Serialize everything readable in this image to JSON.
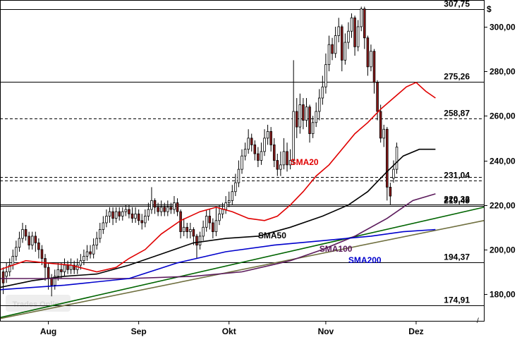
{
  "chart_data": {
    "type": "candlestick",
    "currency_symbol": "$",
    "y_range": [
      168,
      312
    ],
    "y_ticks": [
      180,
      200,
      220,
      240,
      260,
      280,
      300
    ],
    "y_tick_labels": [
      "180,00",
      "200,00",
      "220,00",
      "240,00",
      "260,00",
      "280,00",
      "300,00"
    ],
    "x_labels": [
      "Aug",
      "Sep",
      "Okt",
      "Nov",
      "Dez"
    ],
    "x_label_days": [
      15,
      43,
      71,
      101,
      129
    ],
    "days_total": 150,
    "levels": [
      {
        "value": 307.75,
        "label": "307,75",
        "style": "solid"
      },
      {
        "value": 275.26,
        "label": "275,26",
        "style": "solid"
      },
      {
        "value": 258.87,
        "label": "258,87",
        "style": "dashed"
      },
      {
        "value": 232.5,
        "label": "",
        "style": "dashed"
      },
      {
        "value": 231.04,
        "label": "231,04",
        "style": "dashed"
      },
      {
        "value": 220.32,
        "label": "220,32",
        "style": "solid"
      },
      {
        "value": 219.49,
        "label": "219,49",
        "style": "solid"
      },
      {
        "value": 194.37,
        "label": "194,37",
        "style": "solid"
      },
      {
        "value": 174.91,
        "label": "174,91",
        "style": "solid"
      }
    ],
    "sma_labels": [
      {
        "name": "SMA20",
        "color": "#e00000"
      },
      {
        "name": "SMA50",
        "color": "#000000"
      },
      {
        "name": "SMA100",
        "color": "#5b1a5b"
      },
      {
        "name": "SMA200",
        "color": "#0000cc"
      }
    ],
    "series": [
      {
        "name": "SMA20",
        "color": "#e00000",
        "points": [
          [
            0,
            191
          ],
          [
            8,
            195
          ],
          [
            14,
            194
          ],
          [
            22,
            193
          ],
          [
            30,
            190
          ],
          [
            36,
            192
          ],
          [
            40,
            196
          ],
          [
            45,
            200
          ],
          [
            50,
            207
          ],
          [
            56,
            213
          ],
          [
            62,
            217
          ],
          [
            67,
            219
          ],
          [
            72,
            217
          ],
          [
            77,
            214
          ],
          [
            82,
            213
          ],
          [
            86,
            215
          ],
          [
            90,
            220
          ],
          [
            94,
            226
          ],
          [
            98,
            233
          ],
          [
            102,
            238
          ],
          [
            106,
            245
          ],
          [
            110,
            252
          ],
          [
            114,
            257
          ],
          [
            118,
            263
          ],
          [
            122,
            268
          ],
          [
            126,
            273
          ],
          [
            129,
            275
          ],
          [
            132,
            271
          ],
          [
            135,
            268
          ]
        ]
      },
      {
        "name": "SMA50",
        "color": "#000000",
        "points": [
          [
            0,
            183
          ],
          [
            10,
            186
          ],
          [
            20,
            188
          ],
          [
            30,
            189
          ],
          [
            40,
            193
          ],
          [
            50,
            198
          ],
          [
            60,
            203
          ],
          [
            70,
            205
          ],
          [
            80,
            206
          ],
          [
            90,
            210
          ],
          [
            100,
            215
          ],
          [
            108,
            220
          ],
          [
            114,
            226
          ],
          [
            120,
            235
          ],
          [
            125,
            242
          ],
          [
            130,
            245
          ],
          [
            135,
            245
          ]
        ]
      },
      {
        "name": "SMA100",
        "color": "#5b1a5b",
        "points": [
          [
            0,
            187
          ],
          [
            20,
            187
          ],
          [
            40,
            187
          ],
          [
            60,
            188
          ],
          [
            75,
            190
          ],
          [
            90,
            195
          ],
          [
            100,
            200
          ],
          [
            110,
            206
          ],
          [
            120,
            214
          ],
          [
            128,
            222
          ],
          [
            135,
            225
          ]
        ]
      },
      {
        "name": "SMA200",
        "color": "#0000cc",
        "points": [
          [
            0,
            182
          ],
          [
            20,
            184
          ],
          [
            40,
            187
          ],
          [
            55,
            194
          ],
          [
            70,
            199
          ],
          [
            85,
            202
          ],
          [
            100,
            204
          ],
          [
            115,
            206
          ],
          [
            125,
            208
          ],
          [
            135,
            209
          ]
        ]
      },
      {
        "name": "trend-green",
        "color": "#006400",
        "points": [
          [
            0,
            169.5
          ],
          [
            150,
            219
          ]
        ]
      },
      {
        "name": "trend-olive",
        "color": "#707040",
        "points": [
          [
            0,
            169
          ],
          [
            150,
            213
          ]
        ]
      }
    ],
    "candles": [
      [
        1,
        190,
        185,
        192,
        180
      ],
      [
        2,
        188,
        190,
        194,
        185
      ],
      [
        3,
        190,
        193,
        196,
        188
      ],
      [
        4,
        193,
        197,
        200,
        191
      ],
      [
        5,
        197,
        201,
        204,
        195
      ],
      [
        6,
        201,
        205,
        208,
        199
      ],
      [
        7,
        205,
        209,
        212,
        203
      ],
      [
        8,
        209,
        206,
        211,
        204
      ],
      [
        9,
        206,
        202,
        208,
        200
      ],
      [
        10,
        202,
        206,
        208,
        200
      ],
      [
        11,
        206,
        203,
        208,
        199
      ],
      [
        12,
        203,
        200,
        205,
        196
      ],
      [
        13,
        200,
        196,
        202,
        193
      ],
      [
        14,
        196,
        192,
        198,
        186
      ],
      [
        15,
        192,
        187,
        194,
        182
      ],
      [
        16,
        187,
        184,
        189,
        179
      ],
      [
        17,
        184,
        188,
        191,
        182
      ],
      [
        18,
        188,
        191,
        194,
        186
      ],
      [
        19,
        191,
        190,
        194,
        187
      ],
      [
        20,
        190,
        193,
        196,
        188
      ],
      [
        21,
        193,
        191,
        195,
        189
      ],
      [
        22,
        191,
        193,
        196,
        189
      ],
      [
        23,
        193,
        191,
        195,
        189
      ],
      [
        24,
        191,
        193,
        196,
        189
      ],
      [
        25,
        193,
        195,
        198,
        191
      ],
      [
        26,
        195,
        197,
        200,
        193
      ],
      [
        27,
        197,
        199,
        202,
        195
      ],
      [
        28,
        199,
        198,
        202,
        196
      ],
      [
        29,
        198,
        202,
        205,
        196
      ],
      [
        30,
        202,
        205,
        208,
        200
      ],
      [
        31,
        205,
        209,
        212,
        203
      ],
      [
        32,
        209,
        212,
        215,
        207
      ],
      [
        33,
        212,
        215,
        218,
        210
      ],
      [
        34,
        215,
        217,
        219,
        212
      ],
      [
        35,
        217,
        214,
        219,
        211
      ],
      [
        36,
        214,
        217,
        219,
        212
      ],
      [
        37,
        217,
        215,
        219,
        213
      ],
      [
        38,
        215,
        217,
        219,
        213
      ],
      [
        39,
        217,
        218,
        220,
        215
      ],
      [
        40,
        218,
        216,
        220,
        214
      ],
      [
        41,
        216,
        214,
        219,
        212
      ],
      [
        42,
        214,
        216,
        219,
        212
      ],
      [
        43,
        216,
        213,
        218,
        211
      ],
      [
        44,
        213,
        212,
        216,
        209
      ],
      [
        45,
        212,
        215,
        218,
        210
      ],
      [
        46,
        215,
        218,
        221,
        213
      ],
      [
        47,
        218,
        222,
        228,
        216
      ],
      [
        48,
        222,
        219,
        223,
        216
      ],
      [
        49,
        219,
        217,
        221,
        215
      ],
      [
        50,
        217,
        219,
        222,
        215
      ],
      [
        51,
        219,
        217,
        221,
        215
      ],
      [
        52,
        217,
        219,
        222,
        215
      ],
      [
        53,
        219,
        218,
        221,
        216
      ],
      [
        54,
        218,
        221,
        224,
        216
      ],
      [
        55,
        221,
        217,
        223,
        215
      ],
      [
        56,
        217,
        208,
        218,
        205
      ],
      [
        57,
        208,
        210,
        214,
        206
      ],
      [
        58,
        210,
        208,
        212,
        205
      ],
      [
        59,
        208,
        209,
        212,
        205
      ],
      [
        60,
        209,
        206,
        210,
        202
      ],
      [
        61,
        206,
        202,
        207,
        196
      ],
      [
        62,
        202,
        206,
        208,
        200
      ],
      [
        63,
        206,
        210,
        213,
        204
      ],
      [
        64,
        210,
        215,
        218,
        208
      ],
      [
        65,
        215,
        212,
        218,
        209
      ],
      [
        66,
        212,
        208,
        214,
        205
      ],
      [
        67,
        208,
        213,
        219,
        206
      ],
      [
        68,
        213,
        216,
        220,
        211
      ],
      [
        69,
        216,
        218,
        221,
        214
      ],
      [
        70,
        218,
        221,
        224,
        216
      ],
      [
        71,
        221,
        222,
        226,
        219
      ],
      [
        72,
        222,
        226,
        229,
        220
      ],
      [
        73,
        226,
        230,
        234,
        224
      ],
      [
        74,
        230,
        236,
        240,
        228
      ],
      [
        75,
        236,
        242,
        245,
        234
      ],
      [
        76,
        242,
        245,
        248,
        240
      ],
      [
        77,
        245,
        250,
        254,
        243
      ],
      [
        78,
        250,
        247,
        252,
        244
      ],
      [
        79,
        247,
        243,
        249,
        240
      ],
      [
        80,
        243,
        240,
        246,
        237
      ],
      [
        81,
        240,
        244,
        248,
        238
      ],
      [
        82,
        244,
        250,
        254,
        242
      ],
      [
        83,
        250,
        253,
        256,
        247
      ],
      [
        84,
        253,
        247,
        255,
        244
      ],
      [
        85,
        247,
        240,
        250,
        237
      ],
      [
        86,
        240,
        236,
        243,
        233
      ],
      [
        87,
        236,
        238,
        244,
        233
      ],
      [
        88,
        238,
        244,
        250,
        236
      ],
      [
        89,
        244,
        238,
        248,
        235
      ],
      [
        90,
        238,
        240,
        245,
        236
      ],
      [
        91,
        240,
        262,
        285,
        238
      ],
      [
        92,
        262,
        255,
        268,
        250
      ],
      [
        93,
        255,
        265,
        270,
        252
      ],
      [
        94,
        265,
        258,
        268,
        254
      ],
      [
        95,
        258,
        264,
        268,
        255
      ],
      [
        96,
        264,
        252,
        265,
        248
      ],
      [
        97,
        252,
        257,
        260,
        250
      ],
      [
        98,
        257,
        262,
        266,
        255
      ],
      [
        99,
        262,
        268,
        272,
        258
      ],
      [
        100,
        268,
        273,
        278,
        265
      ],
      [
        101,
        273,
        283,
        288,
        270
      ],
      [
        102,
        283,
        292,
        296,
        280
      ],
      [
        103,
        292,
        288,
        295,
        285
      ],
      [
        104,
        288,
        296,
        300,
        286
      ],
      [
        105,
        296,
        300,
        304,
        293
      ],
      [
        106,
        300,
        285,
        301,
        280
      ],
      [
        107,
        285,
        293,
        297,
        283
      ],
      [
        108,
        293,
        298,
        302,
        290
      ],
      [
        109,
        298,
        304,
        306,
        295
      ],
      [
        110,
        304,
        291,
        305,
        287
      ],
      [
        111,
        291,
        300,
        303,
        289
      ],
      [
        112,
        300,
        308,
        309,
        298
      ],
      [
        113,
        308,
        295,
        309,
        290
      ],
      [
        114,
        295,
        282,
        296,
        278
      ],
      [
        115,
        282,
        289,
        292,
        280
      ],
      [
        116,
        289,
        275,
        290,
        270
      ],
      [
        117,
        275,
        262,
        276,
        258
      ],
      [
        118,
        262,
        250,
        265,
        248
      ],
      [
        119,
        250,
        254,
        256,
        246
      ],
      [
        120,
        254,
        228,
        255,
        222
      ],
      [
        121,
        228,
        224,
        230,
        220
      ],
      [
        122,
        232,
        236,
        240,
        230
      ],
      [
        123,
        236,
        246,
        248,
        234
      ]
    ],
    "watermark": "Trades Online",
    "corner_symbol": "/"
  }
}
